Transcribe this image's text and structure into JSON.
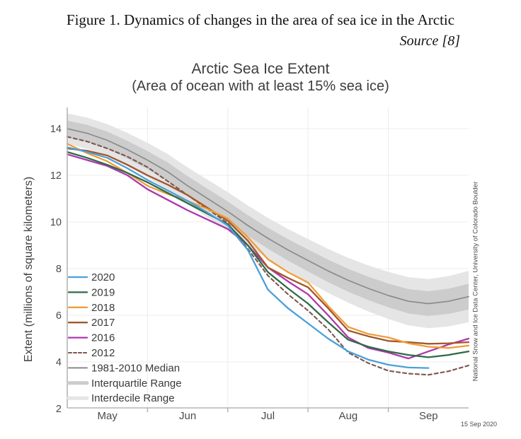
{
  "page": {
    "caption": "Figure 1. Dynamics of changes in the area of sea ice in the Arctic",
    "source": "Source [8]"
  },
  "chart": {
    "title": "Arctic Sea Ice Extent",
    "subtitle": "(Area of ocean with at least 15% sea ice)",
    "y_axis_label": "Extent (millions of square kilometers)",
    "credit": "National Snow and Ice Data Center, University of Colorado Boulder",
    "date_stamp": "15 Sep 2020"
  },
  "chart_data": {
    "type": "line",
    "title": "Arctic Sea Ice Extent",
    "subtitle": "(Area of ocean with at least 15% sea ice)",
    "xlabel": "",
    "ylabel": "Extent (millions of square kilometers)",
    "x_unit": "months since May 1 (0 = May 1, 5 = Oct 1)",
    "xlim": [
      0,
      5
    ],
    "ylim": [
      2,
      14.9
    ],
    "y_ticks": [
      2,
      4,
      6,
      8,
      10,
      12,
      14
    ],
    "x_tick_labels": [
      "May",
      "Jun",
      "Jul",
      "Aug",
      "Sep"
    ],
    "x_gridline_positions": [
      1,
      2,
      3,
      4
    ],
    "grid": true,
    "legend_position": "inside lower-left",
    "colors": {
      "axis": "#b5b5b5",
      "gridline": "#ececec",
      "text": "#4a4a4a"
    },
    "legend": [
      "2020",
      "2019",
      "2018",
      "2017",
      "2016",
      "2012",
      "1981-2010 Median",
      "Interquartile Range",
      "Interdecile Range"
    ],
    "series": [
      {
        "name": "2020",
        "color": "#4aa0d9",
        "dash": null,
        "width": 2.3,
        "points": [
          [
            0,
            13.2
          ],
          [
            0.25,
            13.0
          ],
          [
            0.5,
            12.75
          ],
          [
            0.75,
            12.3
          ],
          [
            1,
            11.8
          ],
          [
            1.25,
            11.35
          ],
          [
            1.5,
            10.9
          ],
          [
            1.75,
            10.4
          ],
          [
            2,
            9.85
          ],
          [
            2.25,
            8.8
          ],
          [
            2.5,
            7.1
          ],
          [
            2.75,
            6.3
          ],
          [
            3,
            5.65
          ],
          [
            3.25,
            5.0
          ],
          [
            3.5,
            4.45
          ],
          [
            3.75,
            4.1
          ],
          [
            4,
            3.88
          ],
          [
            4.25,
            3.76
          ],
          [
            4.5,
            3.74
          ]
        ]
      },
      {
        "name": "2019",
        "color": "#2e6b45",
        "dash": null,
        "width": 2.3,
        "points": [
          [
            0,
            13.0
          ],
          [
            0.25,
            12.75
          ],
          [
            0.5,
            12.45
          ],
          [
            0.75,
            12.1
          ],
          [
            1,
            11.7
          ],
          [
            1.25,
            11.25
          ],
          [
            1.5,
            10.8
          ],
          [
            1.75,
            10.35
          ],
          [
            2,
            9.9
          ],
          [
            2.25,
            9.0
          ],
          [
            2.5,
            7.85
          ],
          [
            2.75,
            7.15
          ],
          [
            3,
            6.5
          ],
          [
            3.25,
            5.7
          ],
          [
            3.5,
            4.95
          ],
          [
            3.75,
            4.65
          ],
          [
            4,
            4.45
          ],
          [
            4.25,
            4.3
          ],
          [
            4.5,
            4.2
          ],
          [
            4.75,
            4.3
          ],
          [
            5,
            4.45
          ]
        ]
      },
      {
        "name": "2018",
        "color": "#f09c3a",
        "dash": null,
        "width": 2.3,
        "points": [
          [
            0,
            13.35
          ],
          [
            0.25,
            12.95
          ],
          [
            0.5,
            12.6
          ],
          [
            0.75,
            12.1
          ],
          [
            1,
            11.55
          ],
          [
            1.25,
            11.2
          ],
          [
            1.5,
            10.9
          ],
          [
            1.75,
            10.55
          ],
          [
            2,
            10.15
          ],
          [
            2.25,
            9.35
          ],
          [
            2.5,
            8.4
          ],
          [
            2.75,
            7.85
          ],
          [
            3,
            7.4
          ],
          [
            3.25,
            6.4
          ],
          [
            3.5,
            5.5
          ],
          [
            3.75,
            5.2
          ],
          [
            4,
            5.05
          ],
          [
            4.25,
            4.8
          ],
          [
            4.5,
            4.65
          ],
          [
            4.75,
            4.6
          ],
          [
            5,
            4.7
          ]
        ]
      },
      {
        "name": "2017",
        "color": "#a2562b",
        "dash": null,
        "width": 2.3,
        "points": [
          [
            0,
            13.15
          ],
          [
            0.25,
            13.05
          ],
          [
            0.5,
            12.85
          ],
          [
            0.75,
            12.45
          ],
          [
            1,
            12.0
          ],
          [
            1.25,
            11.6
          ],
          [
            1.5,
            11.15
          ],
          [
            1.75,
            10.6
          ],
          [
            2,
            10.05
          ],
          [
            2.25,
            9.2
          ],
          [
            2.5,
            8.05
          ],
          [
            2.75,
            7.6
          ],
          [
            3,
            7.2
          ],
          [
            3.25,
            6.3
          ],
          [
            3.5,
            5.35
          ],
          [
            3.75,
            5.1
          ],
          [
            4,
            4.9
          ],
          [
            4.25,
            4.85
          ],
          [
            4.5,
            4.78
          ],
          [
            4.75,
            4.8
          ],
          [
            5,
            4.85
          ]
        ]
      },
      {
        "name": "2016",
        "color": "#ad37ae",
        "dash": null,
        "width": 2.3,
        "points": [
          [
            0,
            12.9
          ],
          [
            0.25,
            12.65
          ],
          [
            0.5,
            12.4
          ],
          [
            0.75,
            12.0
          ],
          [
            1,
            11.4
          ],
          [
            1.25,
            10.95
          ],
          [
            1.5,
            10.5
          ],
          [
            1.75,
            10.1
          ],
          [
            2,
            9.7
          ],
          [
            2.25,
            9.0
          ],
          [
            2.5,
            8.05
          ],
          [
            2.75,
            7.45
          ],
          [
            3,
            6.9
          ],
          [
            3.25,
            6.0
          ],
          [
            3.5,
            5.05
          ],
          [
            3.75,
            4.6
          ],
          [
            4,
            4.4
          ],
          [
            4.25,
            4.15
          ],
          [
            4.5,
            4.45
          ],
          [
            4.75,
            4.75
          ],
          [
            5,
            5.0
          ]
        ]
      },
      {
        "name": "2012",
        "color": "#7d564c",
        "dash": "5 4",
        "width": 2.1,
        "points": [
          [
            0,
            13.65
          ],
          [
            0.25,
            13.45
          ],
          [
            0.5,
            13.15
          ],
          [
            0.75,
            12.8
          ],
          [
            1,
            12.35
          ],
          [
            1.25,
            11.75
          ],
          [
            1.5,
            11.15
          ],
          [
            1.75,
            10.55
          ],
          [
            2,
            9.95
          ],
          [
            2.25,
            8.85
          ],
          [
            2.5,
            7.7
          ],
          [
            2.75,
            6.9
          ],
          [
            3,
            6.2
          ],
          [
            3.25,
            5.4
          ],
          [
            3.5,
            4.4
          ],
          [
            3.75,
            3.95
          ],
          [
            4,
            3.62
          ],
          [
            4.25,
            3.5
          ],
          [
            4.5,
            3.45
          ],
          [
            4.75,
            3.6
          ],
          [
            5,
            3.85
          ]
        ]
      },
      {
        "name": "1981-2010 Median",
        "color": "#8b8b8b",
        "dash": null,
        "width": 1.7,
        "points": [
          [
            0,
            14.0
          ],
          [
            0.25,
            13.8
          ],
          [
            0.5,
            13.5
          ],
          [
            0.75,
            13.1
          ],
          [
            1,
            12.65
          ],
          [
            1.25,
            12.15
          ],
          [
            1.5,
            11.55
          ],
          [
            1.75,
            11.0
          ],
          [
            2,
            10.45
          ],
          [
            2.25,
            9.85
          ],
          [
            2.5,
            9.3
          ],
          [
            2.75,
            8.8
          ],
          [
            3,
            8.35
          ],
          [
            3.25,
            7.9
          ],
          [
            3.5,
            7.5
          ],
          [
            3.75,
            7.15
          ],
          [
            4,
            6.85
          ],
          [
            4.25,
            6.6
          ],
          [
            4.5,
            6.5
          ],
          [
            4.75,
            6.6
          ],
          [
            5,
            6.8
          ]
        ]
      }
    ],
    "bands": [
      {
        "name": "Interquartile Range",
        "color": "#cccccc",
        "around": "1981-2010 Median",
        "half_width_start": 0.35,
        "half_width_end": 0.55
      },
      {
        "name": "Interdecile Range",
        "color": "#e5e5e5",
        "around": "1981-2010 Median",
        "half_width_start": 0.65,
        "half_width_end": 1.1
      }
    ]
  }
}
